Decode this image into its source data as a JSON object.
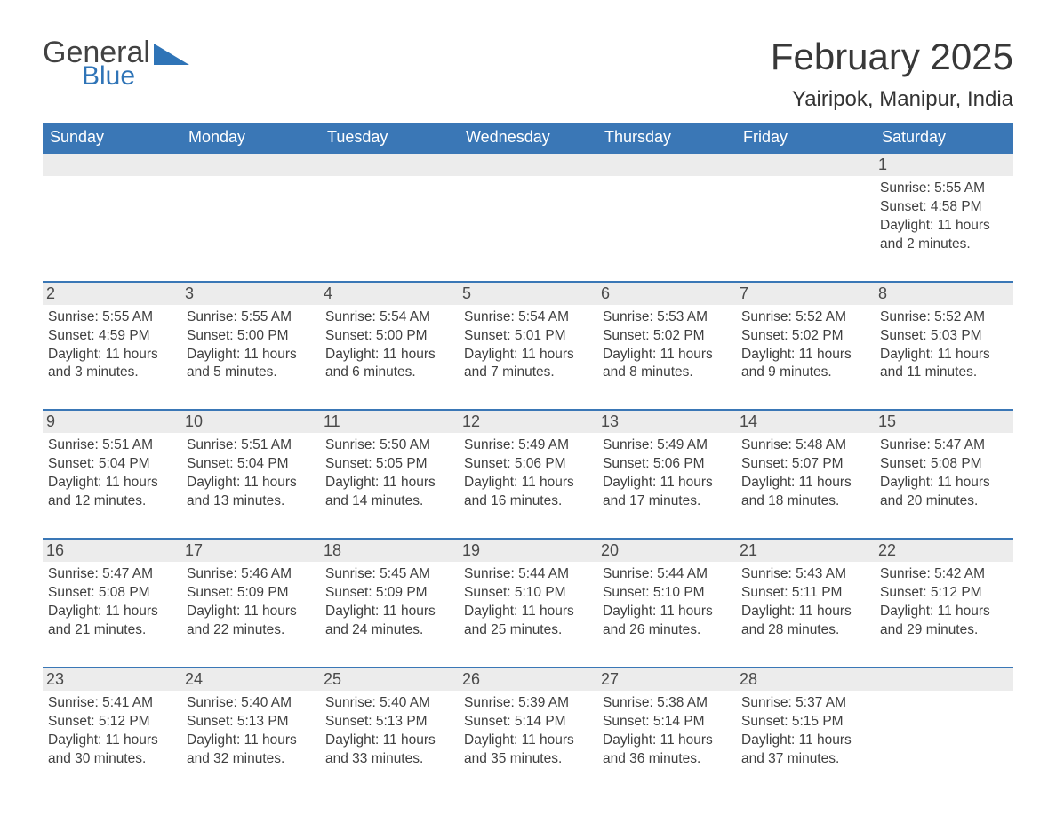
{
  "logo": {
    "main": "General",
    "sub": "Blue"
  },
  "header": {
    "month_title": "February 2025",
    "location": "Yairipok, Manipur, India"
  },
  "calendar": {
    "weekday_header_bg": "#3a77b6",
    "weekday_header_text_color": "#ffffff",
    "day_number_bg": "#ececec",
    "day_text_color": "#3f3f3f",
    "row_border_color": "#3a77b6",
    "weekdays": [
      "Sunday",
      "Monday",
      "Tuesday",
      "Wednesday",
      "Thursday",
      "Friday",
      "Saturday"
    ],
    "weeks": [
      [
        null,
        null,
        null,
        null,
        null,
        null,
        {
          "n": "1",
          "sr": "5:55 AM",
          "ss": "4:58 PM",
          "dl": "11 hours and 2 minutes."
        }
      ],
      [
        {
          "n": "2",
          "sr": "5:55 AM",
          "ss": "4:59 PM",
          "dl": "11 hours and 3 minutes."
        },
        {
          "n": "3",
          "sr": "5:55 AM",
          "ss": "5:00 PM",
          "dl": "11 hours and 5 minutes."
        },
        {
          "n": "4",
          "sr": "5:54 AM",
          "ss": "5:00 PM",
          "dl": "11 hours and 6 minutes."
        },
        {
          "n": "5",
          "sr": "5:54 AM",
          "ss": "5:01 PM",
          "dl": "11 hours and 7 minutes."
        },
        {
          "n": "6",
          "sr": "5:53 AM",
          "ss": "5:02 PM",
          "dl": "11 hours and 8 minutes."
        },
        {
          "n": "7",
          "sr": "5:52 AM",
          "ss": "5:02 PM",
          "dl": "11 hours and 9 minutes."
        },
        {
          "n": "8",
          "sr": "5:52 AM",
          "ss": "5:03 PM",
          "dl": "11 hours and 11 minutes."
        }
      ],
      [
        {
          "n": "9",
          "sr": "5:51 AM",
          "ss": "5:04 PM",
          "dl": "11 hours and 12 minutes."
        },
        {
          "n": "10",
          "sr": "5:51 AM",
          "ss": "5:04 PM",
          "dl": "11 hours and 13 minutes."
        },
        {
          "n": "11",
          "sr": "5:50 AM",
          "ss": "5:05 PM",
          "dl": "11 hours and 14 minutes."
        },
        {
          "n": "12",
          "sr": "5:49 AM",
          "ss": "5:06 PM",
          "dl": "11 hours and 16 minutes."
        },
        {
          "n": "13",
          "sr": "5:49 AM",
          "ss": "5:06 PM",
          "dl": "11 hours and 17 minutes."
        },
        {
          "n": "14",
          "sr": "5:48 AM",
          "ss": "5:07 PM",
          "dl": "11 hours and 18 minutes."
        },
        {
          "n": "15",
          "sr": "5:47 AM",
          "ss": "5:08 PM",
          "dl": "11 hours and 20 minutes."
        }
      ],
      [
        {
          "n": "16",
          "sr": "5:47 AM",
          "ss": "5:08 PM",
          "dl": "11 hours and 21 minutes."
        },
        {
          "n": "17",
          "sr": "5:46 AM",
          "ss": "5:09 PM",
          "dl": "11 hours and 22 minutes."
        },
        {
          "n": "18",
          "sr": "5:45 AM",
          "ss": "5:09 PM",
          "dl": "11 hours and 24 minutes."
        },
        {
          "n": "19",
          "sr": "5:44 AM",
          "ss": "5:10 PM",
          "dl": "11 hours and 25 minutes."
        },
        {
          "n": "20",
          "sr": "5:44 AM",
          "ss": "5:10 PM",
          "dl": "11 hours and 26 minutes."
        },
        {
          "n": "21",
          "sr": "5:43 AM",
          "ss": "5:11 PM",
          "dl": "11 hours and 28 minutes."
        },
        {
          "n": "22",
          "sr": "5:42 AM",
          "ss": "5:12 PM",
          "dl": "11 hours and 29 minutes."
        }
      ],
      [
        {
          "n": "23",
          "sr": "5:41 AM",
          "ss": "5:12 PM",
          "dl": "11 hours and 30 minutes."
        },
        {
          "n": "24",
          "sr": "5:40 AM",
          "ss": "5:13 PM",
          "dl": "11 hours and 32 minutes."
        },
        {
          "n": "25",
          "sr": "5:40 AM",
          "ss": "5:13 PM",
          "dl": "11 hours and 33 minutes."
        },
        {
          "n": "26",
          "sr": "5:39 AM",
          "ss": "5:14 PM",
          "dl": "11 hours and 35 minutes."
        },
        {
          "n": "27",
          "sr": "5:38 AM",
          "ss": "5:14 PM",
          "dl": "11 hours and 36 minutes."
        },
        {
          "n": "28",
          "sr": "5:37 AM",
          "ss": "5:15 PM",
          "dl": "11 hours and 37 minutes."
        },
        null
      ]
    ],
    "labels": {
      "sunrise_prefix": "Sunrise: ",
      "sunset_prefix": "Sunset: ",
      "daylight_prefix": "Daylight: "
    }
  }
}
